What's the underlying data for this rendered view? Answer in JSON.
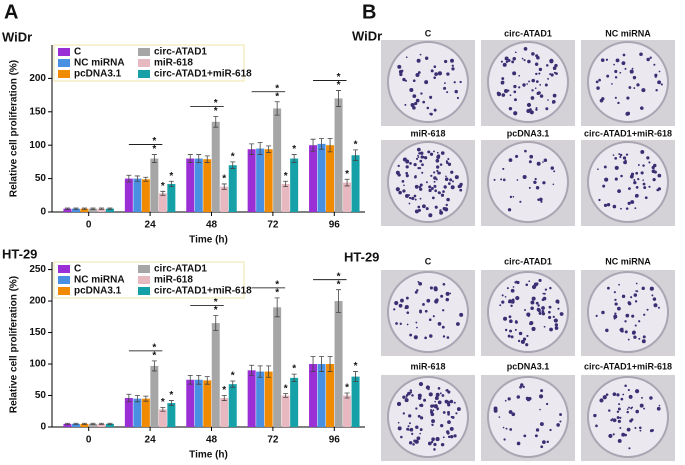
{
  "figure": {
    "panel_a": "A",
    "panel_b": "B"
  },
  "chart_data": [
    {
      "type": "bar",
      "title": "WiDr",
      "xlabel": "Time (h)",
      "ylabel": "Relative cell proliferation (%)",
      "categories": [
        "0",
        "24",
        "48",
        "72",
        "96"
      ],
      "ylim": [
        0,
        250
      ],
      "yticks": [
        0,
        50,
        100,
        150,
        200
      ],
      "legend": "upper left",
      "significance_marker": "*",
      "series": [
        {
          "name": "C",
          "color": "#9b2fd6",
          "values": [
            5,
            50,
            80,
            94,
            100
          ],
          "errors": [
            1,
            5,
            6,
            8,
            9
          ]
        },
        {
          "name": "NC miRNA",
          "color": "#4a90e2",
          "values": [
            5,
            50,
            80,
            95,
            102
          ],
          "errors": [
            1,
            4,
            6,
            9,
            8
          ]
        },
        {
          "name": "pcDNA3.1",
          "color": "#f08a00",
          "values": [
            5,
            49,
            79,
            94,
            100
          ],
          "errors": [
            1,
            3,
            5,
            5,
            10
          ]
        },
        {
          "name": "circ-ATAD1",
          "color": "#a6a6a6",
          "values": [
            5,
            80,
            135,
            155,
            170
          ],
          "errors": [
            1,
            6,
            8,
            10,
            12
          ]
        },
        {
          "name": "miR-618",
          "color": "#e8b8c0",
          "values": [
            5,
            28,
            38,
            42,
            44
          ],
          "errors": [
            1,
            3,
            4,
            4,
            5
          ]
        },
        {
          "name": "circ-ATAD1+miR-618",
          "color": "#16a0a8",
          "values": [
            5,
            42,
            70,
            80,
            85
          ],
          "errors": [
            1,
            4,
            5,
            6,
            8
          ]
        }
      ]
    },
    {
      "type": "bar",
      "title": "HT-29",
      "xlabel": "Time (h)",
      "ylabel": "Relative cell proliferation (%)",
      "categories": [
        "0",
        "24",
        "48",
        "72",
        "96"
      ],
      "ylim": [
        0,
        262
      ],
      "yticks": [
        0,
        50,
        100,
        150,
        200,
        250
      ],
      "legend": "upper left",
      "significance_marker": "*",
      "series": [
        {
          "name": "C",
          "color": "#9b2fd6",
          "values": [
            5,
            46,
            75,
            90,
            100
          ],
          "errors": [
            1,
            6,
            7,
            8,
            12
          ]
        },
        {
          "name": "NC miRNA",
          "color": "#4a90e2",
          "values": [
            5,
            45,
            75,
            88,
            100
          ],
          "errors": [
            1,
            5,
            7,
            9,
            12
          ]
        },
        {
          "name": "pcDNA3.1",
          "color": "#f08a00",
          "values": [
            5,
            45,
            74,
            88,
            100
          ],
          "errors": [
            1,
            4,
            6,
            9,
            12
          ]
        },
        {
          "name": "circ-ATAD1",
          "color": "#a6a6a6",
          "values": [
            5,
            97,
            165,
            190,
            200
          ],
          "errors": [
            1,
            8,
            12,
            15,
            18
          ]
        },
        {
          "name": "miR-618",
          "color": "#e8b8c0",
          "values": [
            5,
            28,
            46,
            50,
            50
          ],
          "errors": [
            1,
            3,
            4,
            3,
            4
          ]
        },
        {
          "name": "circ-ATAD1+miR-618",
          "color": "#16a0a8",
          "values": [
            5,
            38,
            68,
            78,
            80
          ],
          "errors": [
            1,
            4,
            5,
            6,
            8
          ]
        }
      ]
    }
  ],
  "photos": [
    {
      "cell_line": "WiDr",
      "labels": [
        "C",
        "circ-ATAD1",
        "NC miRNA",
        "miR-618",
        "pcDNA3.1",
        "circ-ATAD1+miR-618"
      ]
    },
    {
      "cell_line": "HT-29",
      "labels": [
        "C",
        "circ-ATAD1",
        "NC miRNA",
        "miR-618",
        "pcDNA3.1",
        "circ-ATAD1+miR-618"
      ]
    }
  ]
}
